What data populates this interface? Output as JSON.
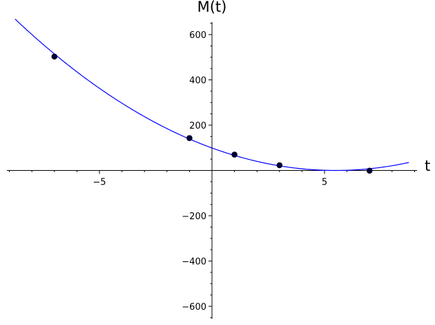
{
  "chart_data": {
    "type": "scatter",
    "title": "",
    "xlabel": "t",
    "ylabel": "M(t)",
    "xlim": [
      -9,
      9
    ],
    "ylim": [
      -650,
      650
    ],
    "grid": false,
    "x_ticks": [
      -5,
      5
    ],
    "x_tick_labels": [
      "−5",
      "5"
    ],
    "y_ticks": [
      -600,
      -400,
      -200,
      200,
      400,
      600
    ],
    "y_tick_labels": [
      "−600",
      "−400",
      "−200",
      "200",
      "400",
      "600"
    ],
    "curve": {
      "color": "#0000ff",
      "formula": "M(t) = 3.3 t^2 - 36.2 t + 99.3",
      "coefficients": [
        3.3,
        -36.2,
        99.3
      ],
      "t_range": [
        -8.75,
        8.75
      ]
    },
    "points": {
      "color": "#000033",
      "x": [
        -7.0,
        -1.0,
        1.0,
        3.0,
        7.0
      ],
      "y": [
        503,
        143,
        70,
        23,
        -1
      ]
    }
  }
}
